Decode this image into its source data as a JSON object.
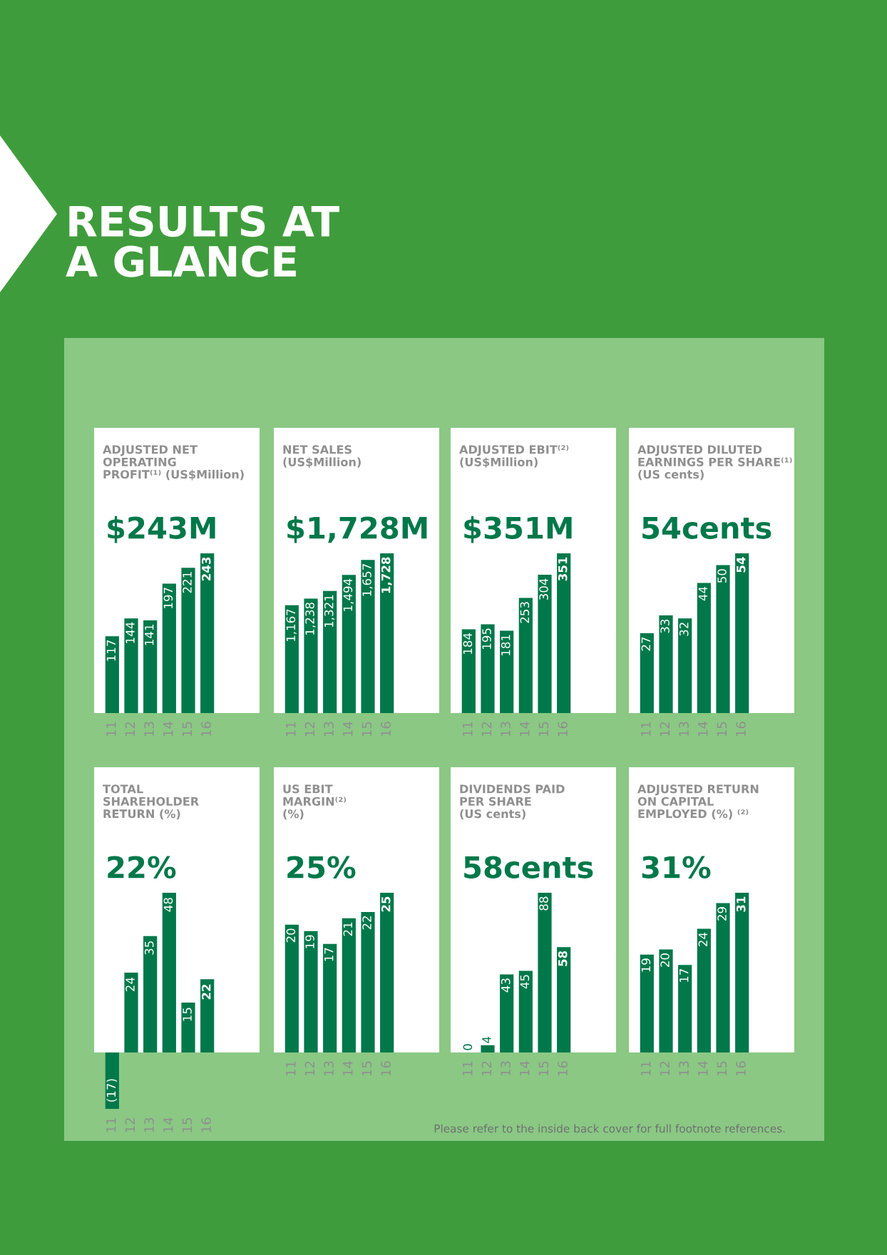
{
  "chart_data": [
    {
      "type": "bar",
      "title": "ADJUSTED NET\nOPERATING\nPROFIT⁽¹⁾ (US$Million)",
      "subtitle": "$243M",
      "categories": [
        "11",
        "12",
        "13",
        "14",
        "15",
        "16"
      ],
      "values": [
        117,
        144,
        141,
        197,
        221,
        243
      ],
      "color": "#00784a",
      "data_labels": true,
      "annotations": [
        "RESULTS AT\nA GLANCE"
      ]
    },
    {
      "type": "bar",
      "title": "NET SALES\n(US$Million)",
      "subtitle": "$1,728M",
      "categories": [
        "11",
        "12",
        "13",
        "14",
        "15",
        "16"
      ],
      "values": [
        1167,
        1238,
        1321,
        1494,
        1657,
        1728
      ],
      "value_labels": [
        "1,167",
        "1,238",
        "1,321",
        "1,494",
        "1,657",
        "1,728"
      ],
      "color": "#00784a"
    },
    {
      "type": "bar",
      "title": "ADJUSTED EBIT⁽²⁾\n(US$Million)",
      "subtitle": "$351M",
      "categories": [
        "11",
        "12",
        "13",
        "14",
        "15",
        "16"
      ],
      "values": [
        184,
        195,
        181,
        253,
        304,
        351
      ],
      "color": "#00784a",
      "data_labels": true
    },
    {
      "type": "bar",
      "title": "ADJUSTED DILUTED\nEARNINGS PER SHARE⁽¹⁾\n(US cents)",
      "subtitle": "54cents",
      "categories": [
        "11",
        "12",
        "13",
        "14",
        "15",
        "16"
      ],
      "values": [
        27,
        33,
        32,
        44,
        50,
        54
      ],
      "color": "#00784a",
      "data_labels": true
    },
    {
      "type": "bar",
      "title": "TOTAL\nSHAREHOLDER\nRETURN (%)",
      "subtitle": "22%",
      "categories": [
        "11",
        "12",
        "13",
        "14",
        "15",
        "16"
      ],
      "values": [
        -17,
        24,
        35,
        48,
        15,
        22
      ],
      "value_labels": [
        "(17)",
        "24",
        "35",
        "48",
        "15",
        "22"
      ],
      "color": "#00784a"
    },
    {
      "type": "bar",
      "title": "US EBIT\nMARGIN⁽²⁾\n(%)",
      "subtitle": "25%",
      "categories": [
        "11",
        "12",
        "13",
        "14",
        "15",
        "16"
      ],
      "values": [
        20,
        19,
        17,
        21,
        22,
        25
      ],
      "color": "#00784a",
      "data_labels": true
    },
    {
      "type": "bar",
      "title": "DIVIDENDS PAID\nPER SHARE\n(US cents)",
      "subtitle": "58cents",
      "categories": [
        "11",
        "12",
        "13",
        "14",
        "15",
        "16"
      ],
      "values": [
        0,
        4,
        43,
        45,
        88,
        58
      ],
      "color": "#00784a",
      "data_labels": true
    },
    {
      "type": "bar",
      "title": "ADJUSTED RETURN\nON CAPITAL\nEMPLOYED (%) ⁽²⁾",
      "subtitle": "31%",
      "categories": [
        "11",
        "12",
        "13",
        "14",
        "15",
        "16"
      ],
      "values": [
        19,
        20,
        17,
        24,
        29,
        31
      ],
      "color": "#00784a",
      "data_labels": true,
      "annotations": [
        "Please refer to the inside back cover for full footnote references."
      ]
    }
  ]
}
